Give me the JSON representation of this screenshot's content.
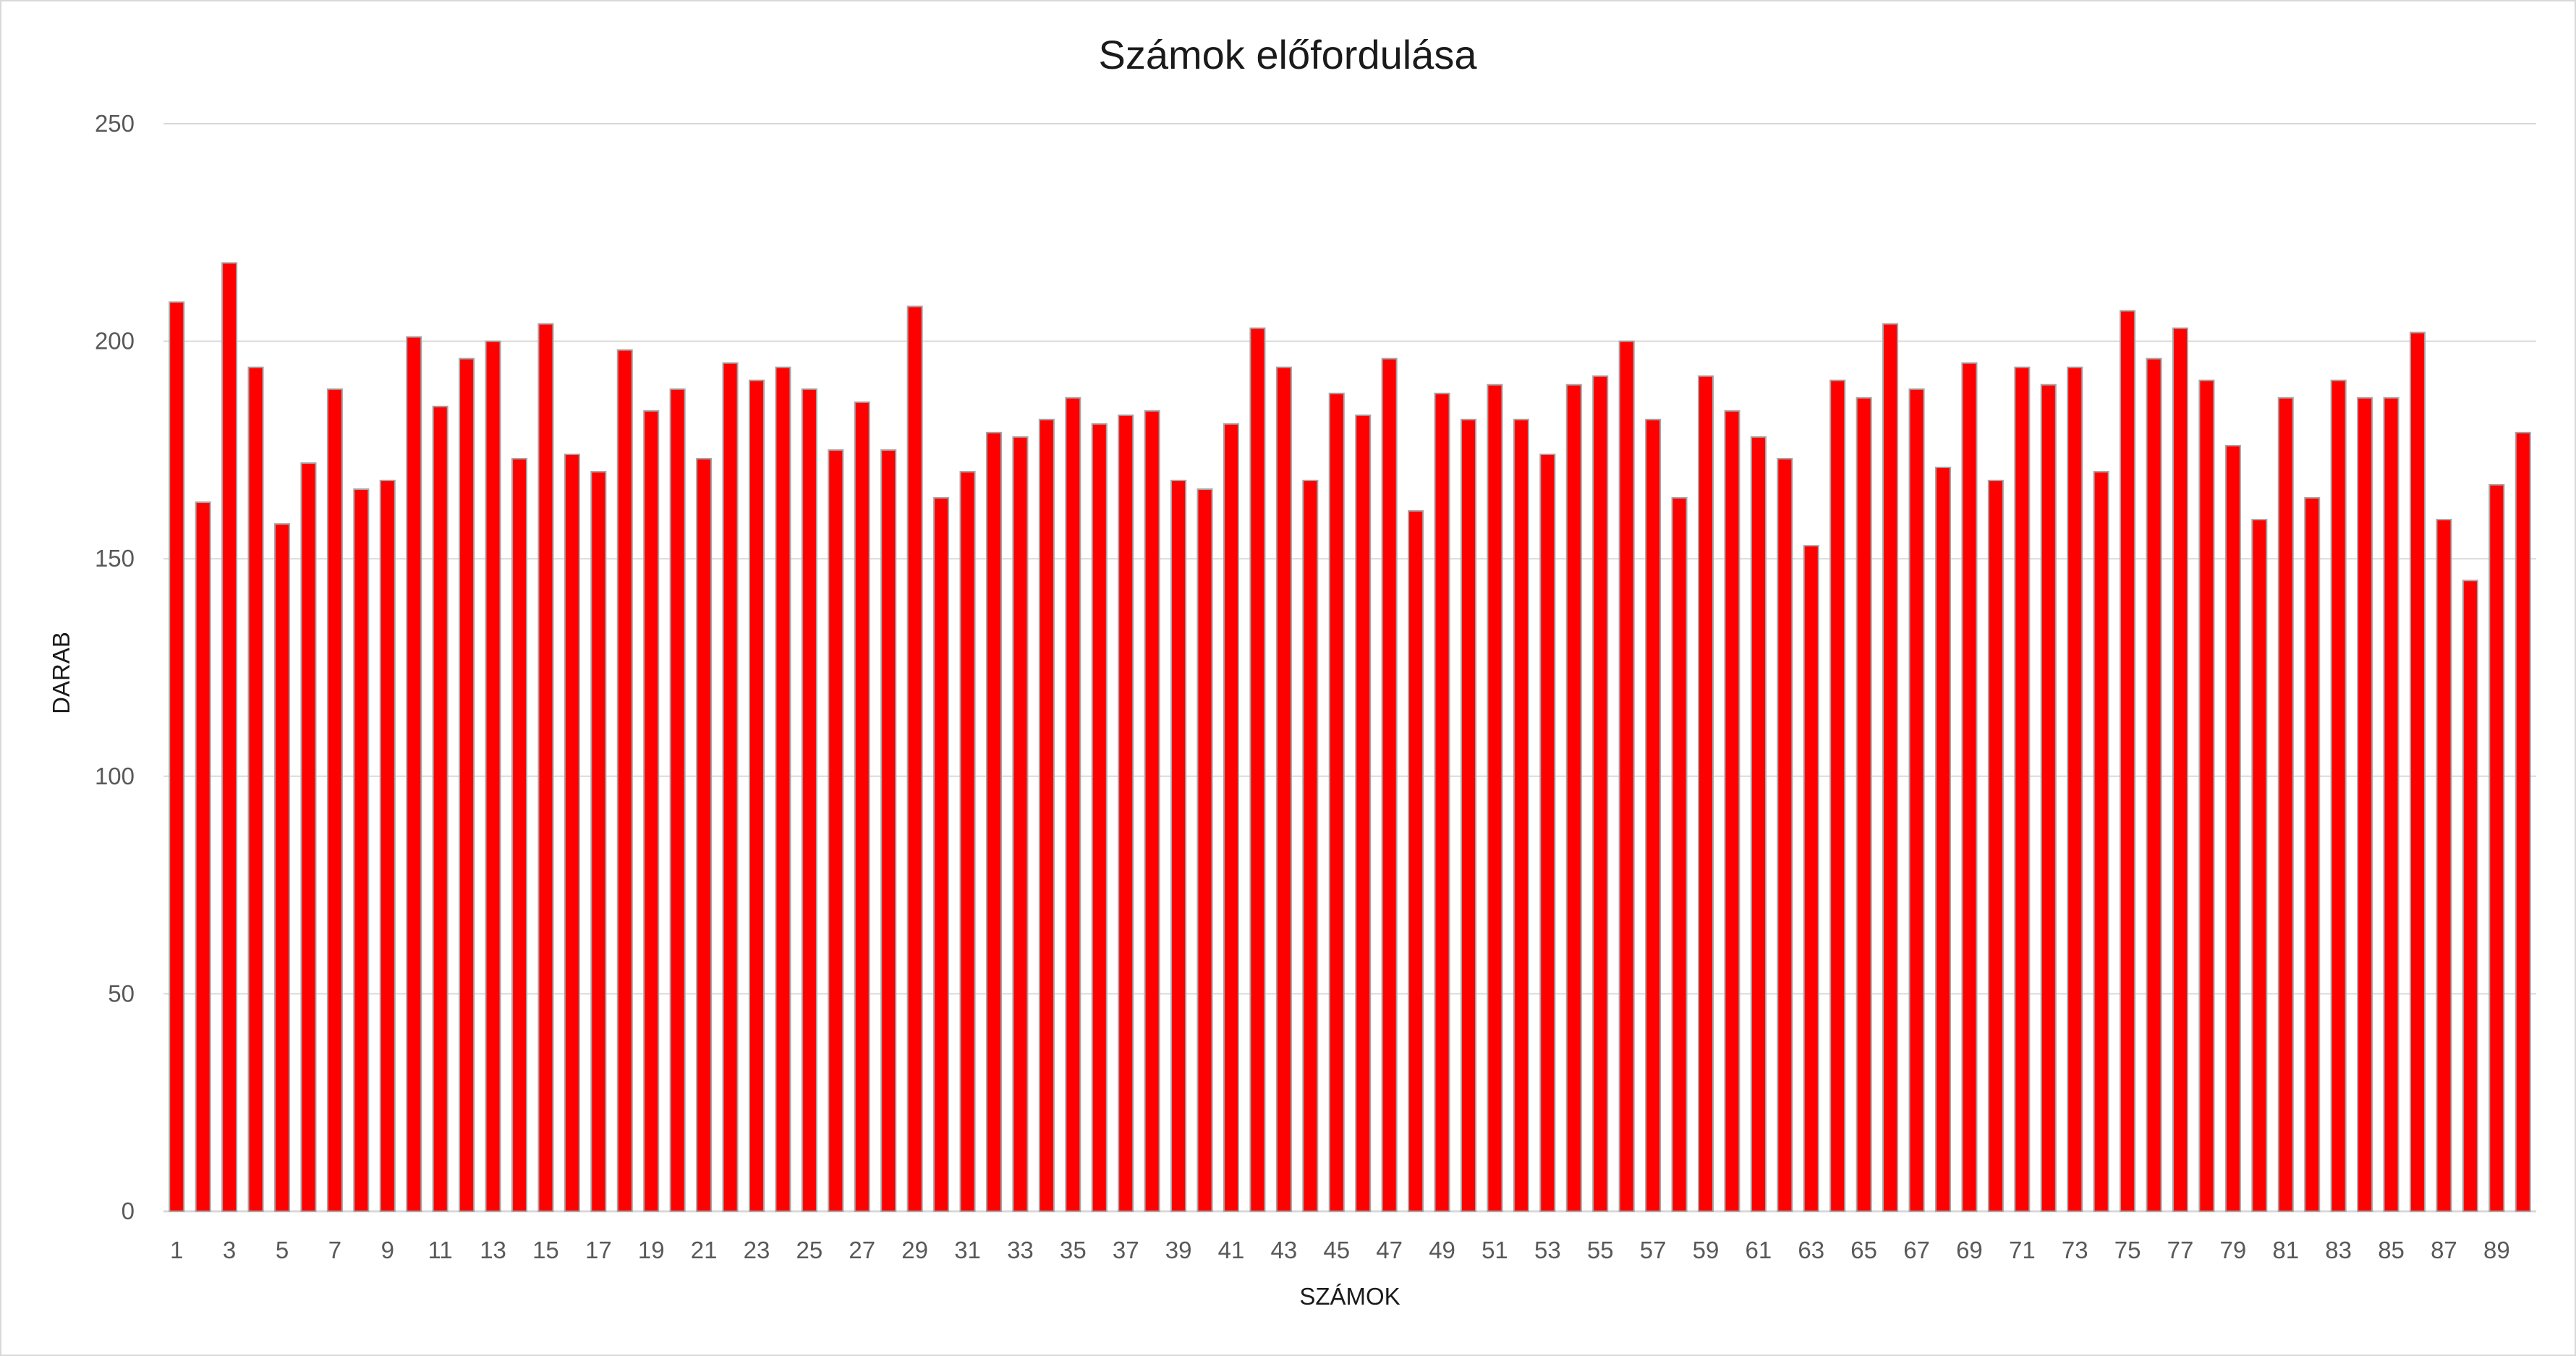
{
  "chart_data": {
    "type": "bar",
    "title": "Számok előfordulása",
    "xlabel": "SZÁMOK",
    "ylabel": "DARAB",
    "ylim": [
      0,
      250
    ],
    "yticks": [
      "0",
      "50",
      "100",
      "150",
      "200",
      "250"
    ],
    "bar_color": "#ff0000",
    "bar_edge_color": "#a6a6a6",
    "grid": true,
    "categories": [
      1,
      2,
      3,
      4,
      5,
      6,
      7,
      8,
      9,
      10,
      11,
      12,
      13,
      14,
      15,
      16,
      17,
      18,
      19,
      20,
      21,
      22,
      23,
      24,
      25,
      26,
      27,
      28,
      29,
      30,
      31,
      32,
      33,
      34,
      35,
      36,
      37,
      38,
      39,
      40,
      41,
      42,
      43,
      44,
      45,
      46,
      47,
      48,
      49,
      50,
      51,
      52,
      53,
      54,
      55,
      56,
      57,
      58,
      59,
      60,
      61,
      62,
      63,
      64,
      65,
      66,
      67,
      68,
      69,
      70,
      71,
      72,
      73,
      74,
      75,
      76,
      77,
      78,
      79,
      80,
      81,
      82,
      83,
      84,
      85,
      86,
      87,
      88,
      89,
      90
    ],
    "tick_labels": [
      "1",
      "3",
      "5",
      "7",
      "9",
      "11",
      "13",
      "15",
      "17",
      "19",
      "21",
      "23",
      "25",
      "27",
      "29",
      "31",
      "33",
      "35",
      "37",
      "39",
      "41",
      "43",
      "45",
      "47",
      "49",
      "51",
      "53",
      "55",
      "57",
      "59",
      "61",
      "63",
      "65",
      "67",
      "69",
      "71",
      "73",
      "75",
      "77",
      "79",
      "81",
      "83",
      "85",
      "87",
      "89"
    ],
    "values": [
      209,
      163,
      218,
      194,
      158,
      172,
      189,
      166,
      168,
      201,
      185,
      196,
      200,
      173,
      204,
      174,
      170,
      198,
      184,
      189,
      173,
      195,
      191,
      194,
      189,
      175,
      186,
      175,
      208,
      164,
      170,
      179,
      178,
      182,
      187,
      181,
      183,
      184,
      168,
      166,
      181,
      203,
      194,
      168,
      188,
      183,
      196,
      161,
      188,
      182,
      190,
      182,
      174,
      190,
      192,
      200,
      182,
      164,
      192,
      184,
      178,
      173,
      153,
      191,
      187,
      204,
      189,
      171,
      195,
      168,
      194,
      190,
      194,
      170,
      207,
      196,
      203,
      191,
      176,
      159,
      187,
      164,
      191,
      187,
      187,
      202,
      159,
      145,
      167,
      179
    ]
  }
}
